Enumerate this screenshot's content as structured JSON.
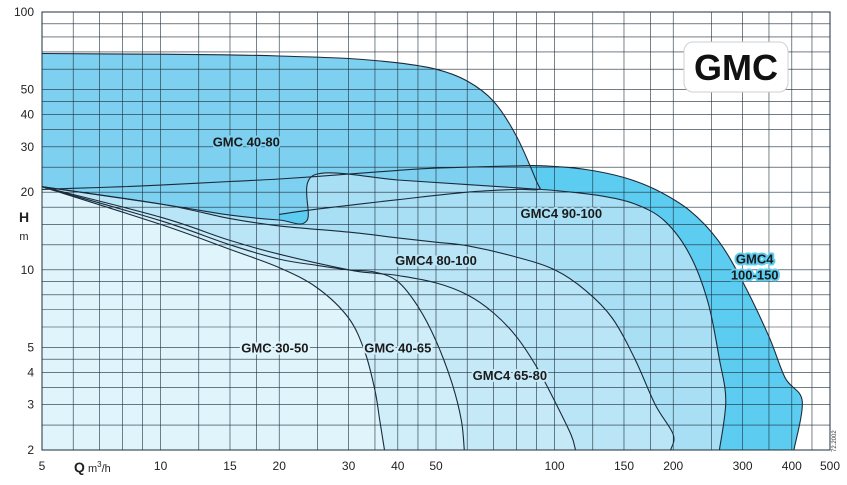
{
  "chart_data": {
    "type": "area",
    "badge": "GMC",
    "xlabel": "Q",
    "xunit_prefix": "m",
    "xunit_sup": "3",
    "xunit_suffix": "/h",
    "ylabel": "H",
    "yunit": "m",
    "xscale": "log",
    "yscale": "log",
    "xlim": [
      5,
      500
    ],
    "ylim": [
      2,
      100
    ],
    "grid": true,
    "x_ticks": [
      5,
      10,
      15,
      20,
      30,
      40,
      50,
      100,
      150,
      200,
      300,
      400,
      500
    ],
    "x_tick_labels": [
      "5",
      "10",
      "15",
      "20",
      "30",
      "40",
      "50",
      "100",
      "150",
      "200",
      "300",
      "400",
      "500"
    ],
    "y_ticks": [
      2,
      3,
      4,
      5,
      10,
      20,
      30,
      40,
      50,
      100
    ],
    "y_tick_labels": [
      "2",
      "3",
      "4",
      "5",
      "10",
      "20",
      "30",
      "40",
      "50",
      "100"
    ],
    "x_grid": [
      5,
      6,
      7,
      8,
      9,
      10,
      12.5,
      15,
      17.5,
      20,
      25,
      30,
      35,
      40,
      45,
      50,
      60,
      70,
      80,
      90,
      100,
      125,
      150,
      175,
      200,
      250,
      300,
      350,
      400,
      450,
      500
    ],
    "y_grid": [
      2,
      2.5,
      3,
      3.5,
      4,
      4.5,
      5,
      6,
      7,
      8,
      9,
      10,
      12.5,
      15,
      17.5,
      20,
      25,
      30,
      35,
      40,
      45,
      50,
      60,
      70,
      80,
      90,
      100
    ],
    "series": [
      {
        "name": "GMC4 100-150",
        "label_lines": [
          "GMC4",
          "100-150"
        ],
        "color": "#5ccdf0",
        "label_at": [
          322,
          10.3
        ],
        "outline": [
          [
            5,
            20.5
          ],
          [
            6,
            20.7
          ],
          [
            8,
            21
          ],
          [
            10,
            21.3
          ],
          [
            15,
            22
          ],
          [
            20,
            22.5
          ],
          [
            30,
            23.5
          ],
          [
            40,
            24.3
          ],
          [
            50,
            24.8
          ],
          [
            80,
            25.3
          ],
          [
            95,
            25.3
          ],
          [
            120,
            24.5
          ],
          [
            150,
            22.8
          ],
          [
            180,
            20.5
          ],
          [
            220,
            17
          ],
          [
            260,
            13
          ],
          [
            300,
            9
          ],
          [
            350,
            5.5
          ],
          [
            385,
            3.8
          ],
          [
            425,
            3.1
          ],
          [
            405,
            2
          ]
        ]
      },
      {
        "name": "GMC 40-80",
        "label_lines": [
          "GMC 40-80"
        ],
        "color": "#7dd0ef",
        "label_at": [
          16.5,
          31.5
        ],
        "outline": [
          [
            5,
            69
          ],
          [
            10,
            68.6
          ],
          [
            15,
            68.2
          ],
          [
            20,
            67.5
          ],
          [
            30,
            66
          ],
          [
            40,
            63.5
          ],
          [
            50,
            60
          ],
          [
            60,
            54
          ],
          [
            70,
            45
          ],
          [
            80,
            33
          ],
          [
            90,
            22
          ],
          [
            91,
            20.5
          ],
          [
            80,
            20.5
          ],
          [
            60,
            20
          ],
          [
            40,
            18.7
          ],
          [
            25,
            17.2
          ],
          [
            20,
            16.4
          ]
        ]
      },
      {
        "name": "GMC4 90-100",
        "label_lines": [
          "GMC4 90-100"
        ],
        "color": "#a9dff5",
        "label_at": [
          104,
          16.6
        ],
        "outline": [
          [
            5,
            21
          ],
          [
            10,
            18
          ],
          [
            15,
            16.3
          ],
          [
            20,
            15.6
          ],
          [
            23.5,
            15.5
          ],
          [
            24.5,
            23.3
          ],
          [
            40,
            22.3
          ],
          [
            60,
            21.4
          ],
          [
            80,
            20.8
          ],
          [
            100,
            20.3
          ],
          [
            130,
            19.4
          ],
          [
            160,
            18
          ],
          [
            190,
            15.5
          ],
          [
            220,
            11.5
          ],
          [
            245,
            7.5
          ],
          [
            262,
            4.5
          ],
          [
            272,
            3.1
          ],
          [
            262,
            2
          ]
        ]
      },
      {
        "name": "GMC4 80-100",
        "label_lines": [
          "GMC4 80-100"
        ],
        "color": "#b9e5f6",
        "label_at": [
          50,
          10.9
        ],
        "outline": [
          [
            5,
            21
          ],
          [
            10,
            18
          ],
          [
            15,
            15.8
          ],
          [
            20,
            14.8
          ],
          [
            30,
            14
          ],
          [
            40,
            13.3
          ],
          [
            50,
            12.8
          ],
          [
            60,
            12.4
          ],
          [
            80,
            11.2
          ],
          [
            100,
            10
          ],
          [
            120,
            8.3
          ],
          [
            140,
            6.5
          ],
          [
            160,
            4.5
          ],
          [
            180,
            3
          ],
          [
            200,
            2.3
          ],
          [
            197,
            2
          ]
        ]
      },
      {
        "name": "GMC4 65-80",
        "label_lines": [
          "GMC4 65-80"
        ],
        "color": "#c6e9f8",
        "label_at": [
          77,
          3.9
        ],
        "outline": [
          [
            5,
            21
          ],
          [
            10,
            16
          ],
          [
            15,
            13
          ],
          [
            20,
            11.5
          ],
          [
            30,
            10
          ],
          [
            35,
            9.7
          ],
          [
            40,
            9.5
          ],
          [
            50,
            8.9
          ],
          [
            60,
            8
          ],
          [
            70,
            6.8
          ],
          [
            80,
            5.5
          ],
          [
            90,
            4.2
          ],
          [
            100,
            3.1
          ],
          [
            110,
            2.3
          ],
          [
            113,
            2
          ]
        ]
      },
      {
        "name": "GMC 40-65",
        "label_lines": [
          "GMC 40-65"
        ],
        "color": "#d0eefa",
        "label_at": [
          40,
          5
        ],
        "outline": [
          [
            5,
            21
          ],
          [
            10,
            15.5
          ],
          [
            15,
            12.5
          ],
          [
            20,
            11
          ],
          [
            25,
            10.4
          ],
          [
            30,
            10
          ],
          [
            35,
            9.8
          ],
          [
            40,
            9
          ],
          [
            45,
            7.2
          ],
          [
            50,
            5.3
          ],
          [
            55,
            3.6
          ],
          [
            58,
            2.6
          ],
          [
            59,
            2
          ]
        ]
      },
      {
        "name": "GMC 30-50",
        "label_lines": [
          "GMC 30-50"
        ],
        "color": "#e0f4fc",
        "label_at": [
          19.5,
          5
        ],
        "outline": [
          [
            5,
            21
          ],
          [
            10,
            15
          ],
          [
            15,
            12
          ],
          [
            20,
            10.2
          ],
          [
            25,
            8.5
          ],
          [
            30,
            6.5
          ],
          [
            33,
            4.8
          ],
          [
            35,
            3.4
          ],
          [
            36,
            2.6
          ],
          [
            37,
            2
          ]
        ]
      }
    ],
    "corner_code": "72.2002"
  }
}
